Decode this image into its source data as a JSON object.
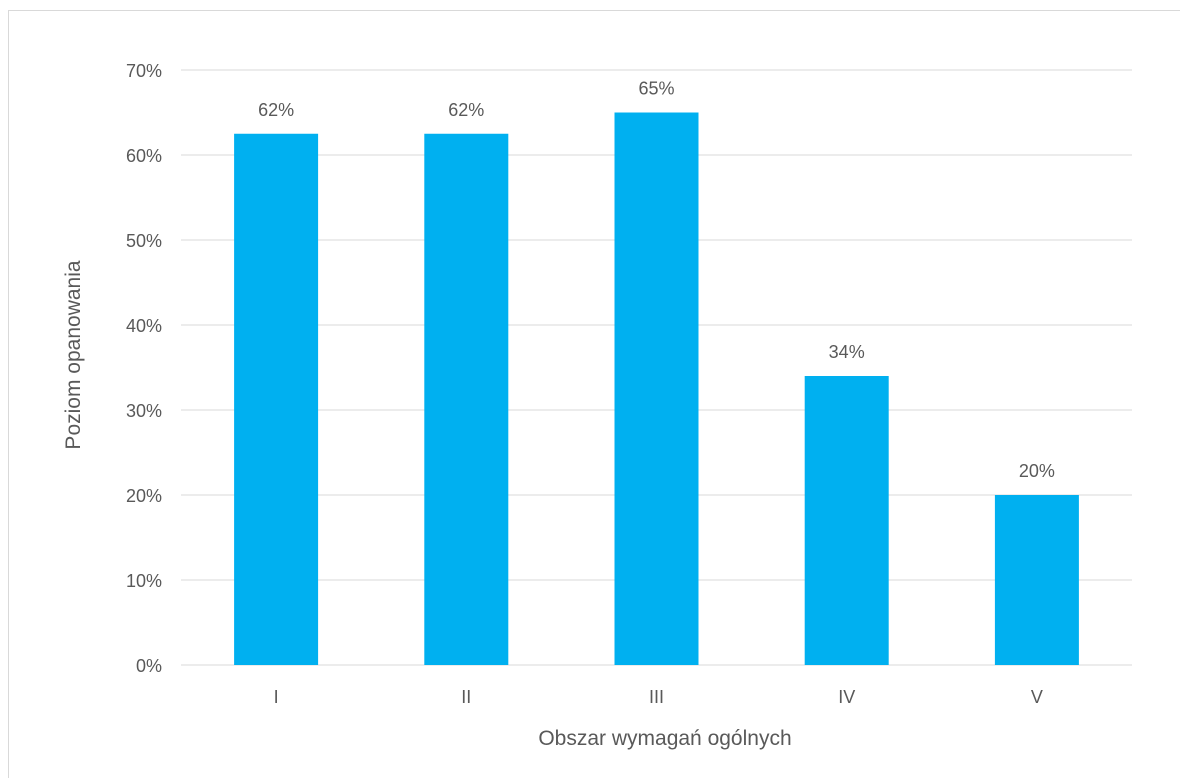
{
  "chart_data": {
    "type": "bar",
    "categories": [
      "I",
      "II",
      "III",
      "IV",
      "V"
    ],
    "values": [
      62.5,
      62.5,
      65,
      34,
      20
    ],
    "data_labels": [
      "62%",
      "62%",
      "65%",
      "34%",
      "20%"
    ],
    "title": "",
    "xlabel": "Obszar wymagań ogólnych",
    "ylabel": "Poziom opanowania",
    "ylim": [
      0,
      70
    ],
    "yticks": [
      0,
      10,
      20,
      30,
      40,
      50,
      60,
      70
    ],
    "ytick_labels": [
      "0%",
      "10%",
      "20%",
      "30%",
      "40%",
      "50%",
      "60%",
      "70%"
    ],
    "grid": true,
    "legend": "none",
    "bar_color": "#00B0F0",
    "grid_color": "#d9d9d9",
    "text_color": "#595959"
  }
}
